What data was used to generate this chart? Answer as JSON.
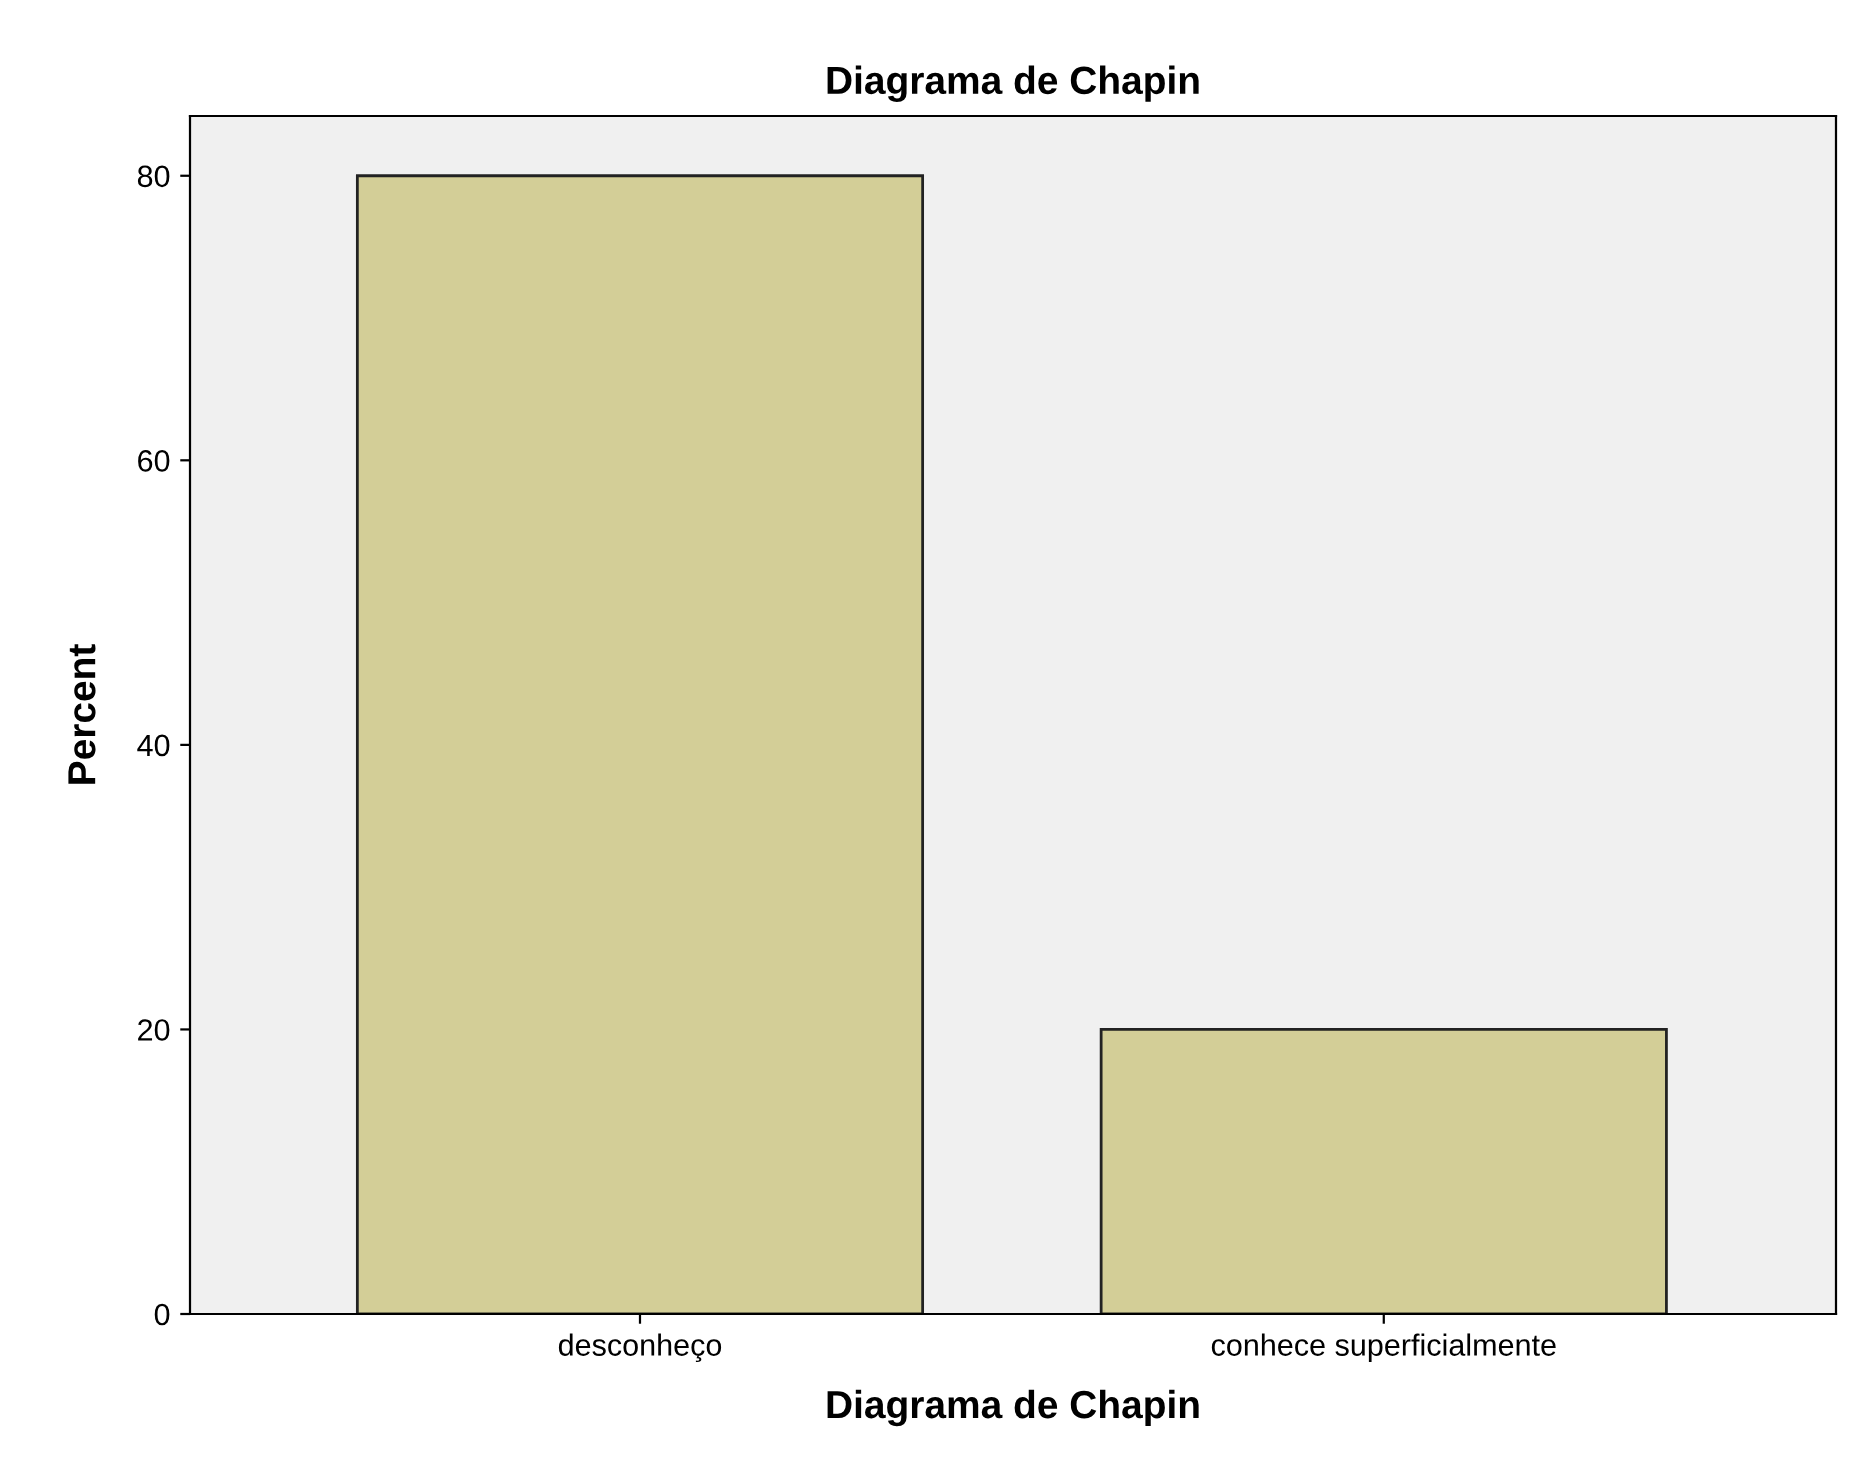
{
  "chart_data": {
    "type": "bar",
    "title": "Diagrama de Chapin",
    "xlabel": "Diagrama de Chapin",
    "ylabel": "Percent",
    "categories": [
      "desconheço",
      "conhece superficialmente"
    ],
    "values": [
      80,
      20
    ],
    "color": "#d3ce97",
    "ylim": [
      0,
      84.2
    ],
    "yticks": [
      0,
      20,
      40,
      60,
      80
    ],
    "grid": false,
    "legend": false
  }
}
